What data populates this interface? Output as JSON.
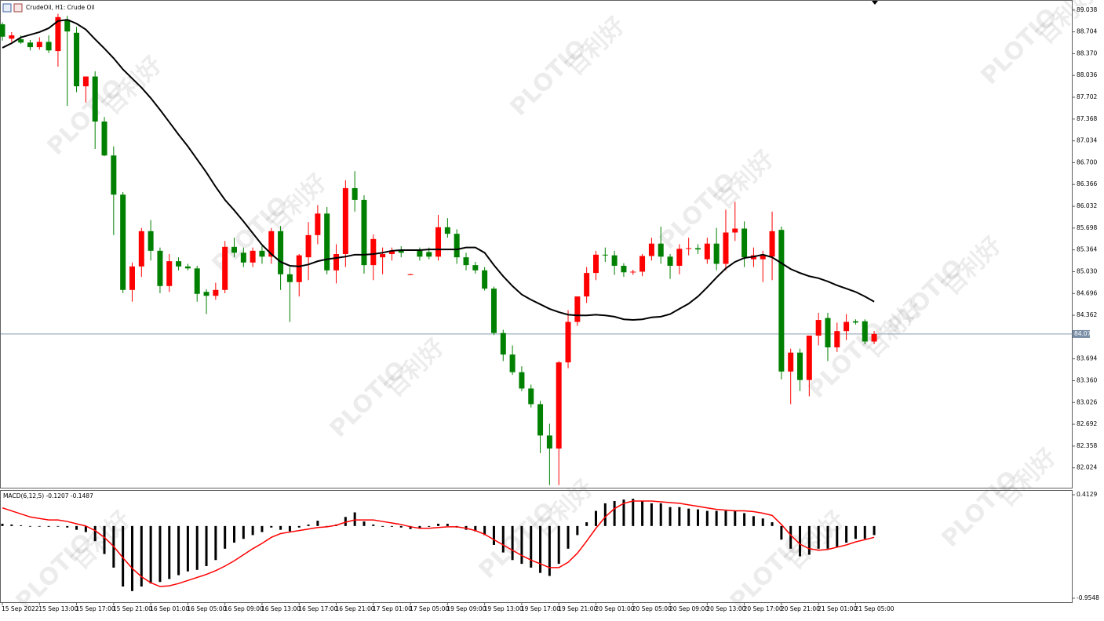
{
  "chart_data": [
    {
      "type": "candlestick",
      "title": "CrudeOil, H1:  Crude Oil",
      "categories": [
        "15 Sep 2022",
        null,
        null,
        null,
        "15 Sep 13:00",
        null,
        null,
        null,
        "15 Sep 17:00",
        null,
        null,
        null,
        "15 Sep 21:00",
        null,
        null,
        null,
        "16 Sep 01:00",
        null,
        null,
        null,
        "16 Sep 05:00",
        null,
        null,
        null,
        "16 Sep 09:00",
        null,
        null,
        null,
        "16 Sep 13:00",
        null,
        null,
        null,
        "16 Sep 17:00",
        null,
        null,
        null,
        "16 Sep 21:00",
        null,
        null,
        null,
        "17 Sep 01:00",
        null,
        null,
        null,
        "17 Sep 05:00",
        null,
        null,
        null,
        "19 Sep 09:00",
        null,
        null,
        null,
        "19 Sep 13:00",
        null,
        null,
        null,
        "19 Sep 17:00",
        null,
        null,
        null,
        "19 Sep 21:00",
        null,
        null,
        null,
        "20 Sep 01:00",
        null,
        null,
        null,
        "20 Sep 05:00",
        null,
        null,
        null,
        "20 Sep 09:00",
        null,
        null,
        null,
        "20 Sep 13:00",
        null,
        null,
        null,
        "20 Sep 17:00",
        null,
        null,
        null,
        "20 Sep 21:00",
        null,
        null,
        null,
        "21 Sep 01:00",
        null,
        null,
        null,
        "21 Sep 05:00",
        null,
        null
      ],
      "open": [
        88.82,
        88.6,
        88.59,
        88.54,
        88.47,
        88.55,
        88.41,
        88.89,
        88.69,
        87.87,
        88.02,
        87.33,
        86.81,
        86.21,
        84.75,
        85.11,
        85.65,
        85.35,
        84.81,
        85.19,
        85.11,
        85.08,
        84.72,
        84.66,
        84.75,
        85.41,
        85.32,
        85.17,
        85.35,
        85.26,
        85.65,
        84.99,
        84.87,
        85.25,
        85.59,
        85.92,
        85.05,
        85.3,
        86.31,
        86.13,
        85.13,
        85.25,
        85.3,
        85.35,
        84.99,
        85.35,
        85.33,
        85.26,
        85.71,
        85.61,
        85.25,
        85.13,
        85.05,
        84.77,
        84.09,
        83.76,
        83.49,
        83.24,
        83.0,
        82.52,
        82.32,
        83.64,
        84.26,
        84.65,
        85.01,
        85.29,
        85.28,
        85.12,
        85.02,
        85.03,
        85.27,
        85.46,
        85.26,
        85.12,
        85.38,
        85.39,
        85.22,
        85.46,
        85.15,
        85.63,
        85.69,
        85.22,
        85.22,
        85.26,
        85.67,
        83.5,
        83.79,
        83.37,
        84.05,
        84.32,
        83.87,
        84.12,
        84.27,
        84.27,
        83.96
      ],
      "high": [
        88.85,
        88.7,
        88.65,
        88.58,
        88.62,
        88.65,
        88.98,
        88.95,
        88.78,
        88.02,
        88.1,
        87.4,
        86.95,
        86.25,
        85.17,
        85.7,
        85.82,
        85.4,
        85.3,
        85.25,
        85.15,
        85.12,
        84.76,
        84.86,
        85.5,
        85.55,
        85.4,
        85.4,
        85.42,
        85.7,
        85.73,
        85.1,
        85.3,
        85.79,
        86.05,
        86.02,
        85.45,
        86.43,
        86.57,
        86.2,
        85.6,
        85.4,
        85.4,
        85.42,
        85.0,
        85.4,
        85.4,
        85.9,
        85.85,
        85.68,
        85.32,
        85.18,
        85.1,
        84.8,
        84.14,
        83.9,
        83.58,
        83.3,
        83.05,
        82.7,
        83.66,
        84.44,
        84.65,
        85.1,
        85.35,
        85.4,
        85.35,
        85.16,
        85.06,
        85.3,
        85.55,
        85.72,
        85.3,
        85.45,
        85.55,
        85.45,
        85.55,
        85.7,
        85.98,
        86.1,
        85.8,
        85.4,
        85.35,
        85.95,
        85.72,
        83.85,
        83.85,
        84.05,
        84.4,
        84.4,
        84.25,
        84.38,
        84.3,
        84.3,
        84.12
      ],
      "low": [
        88.57,
        88.55,
        88.52,
        88.42,
        88.43,
        88.38,
        88.17,
        87.57,
        87.78,
        87.62,
        86.91,
        86.8,
        85.59,
        84.7,
        84.57,
        84.95,
        85.2,
        84.7,
        84.72,
        85.05,
        85.05,
        84.57,
        84.38,
        84.6,
        84.7,
        85.25,
        85.1,
        85.1,
        85.15,
        85.15,
        84.75,
        84.26,
        84.65,
        84.9,
        85.45,
        84.99,
        84.85,
        85.1,
        85.95,
        85.0,
        84.9,
        84.99,
        85.2,
        85.25,
        84.98,
        85.2,
        85.22,
        85.2,
        85.55,
        85.15,
        85.05,
        85.0,
        84.74,
        84.06,
        83.66,
        83.45,
        83.2,
        82.95,
        82.25,
        81.76,
        81.76,
        83.55,
        84.2,
        84.55,
        84.9,
        85.18,
        84.98,
        84.95,
        84.98,
        84.96,
        85.2,
        85.15,
        84.92,
        84.99,
        85.28,
        85.3,
        85.15,
        85.05,
        85.05,
        85.5,
        85.1,
        85.1,
        84.87,
        84.9,
        83.38,
        83.0,
        83.2,
        83.12,
        83.9,
        83.66,
        83.8,
        83.98,
        84.22,
        83.92,
        83.92
      ],
      "close": [
        88.63,
        88.65,
        88.54,
        88.47,
        88.55,
        88.42,
        88.93,
        88.71,
        87.87,
        88.02,
        87.33,
        86.81,
        86.21,
        84.75,
        85.11,
        85.65,
        85.35,
        84.81,
        85.19,
        85.11,
        85.08,
        84.69,
        84.66,
        84.75,
        85.41,
        85.32,
        85.17,
        85.35,
        85.26,
        85.65,
        84.99,
        84.87,
        85.28,
        85.59,
        85.92,
        85.05,
        85.3,
        86.31,
        86.13,
        85.13,
        85.53,
        85.3,
        85.35,
        85.32,
        84.99,
        85.26,
        85.26,
        85.71,
        85.61,
        85.25,
        85.13,
        85.05,
        84.77,
        84.09,
        83.76,
        83.49,
        83.24,
        83.0,
        82.52,
        82.32,
        83.64,
        84.26,
        84.65,
        85.01,
        85.29,
        85.28,
        85.12,
        85.02,
        85.03,
        85.27,
        85.46,
        85.26,
        85.12,
        85.38,
        85.39,
        85.37,
        85.46,
        85.15,
        85.63,
        85.69,
        85.25,
        85.28,
        85.28,
        85.65,
        83.5,
        83.79,
        83.37,
        84.05,
        84.29,
        83.87,
        84.12,
        84.26,
        84.25,
        83.96,
        84.075
      ],
      "up_color": "#ff0000",
      "down_color": "#008000",
      "series": [
        {
          "color": "#000000",
          "values": [
            88.46,
            88.53,
            88.62,
            88.66,
            88.7,
            88.76,
            88.87,
            88.89,
            88.83,
            88.74,
            88.59,
            88.45,
            88.3,
            88.13,
            87.99,
            87.85,
            87.69,
            87.51,
            87.32,
            87.13,
            86.95,
            86.75,
            86.55,
            86.33,
            86.13,
            85.97,
            85.8,
            85.62,
            85.44,
            85.3,
            85.18,
            85.12,
            85.11,
            85.14,
            85.19,
            85.22,
            85.24,
            85.26,
            85.29,
            85.29,
            85.3,
            85.32,
            85.35,
            85.36,
            85.36,
            85.36,
            85.37,
            85.37,
            85.37,
            85.37,
            85.4,
            85.4,
            85.32,
            85.13,
            84.96,
            84.81,
            84.68,
            84.6,
            84.53,
            84.46,
            84.41,
            84.37,
            84.36,
            84.36,
            84.37,
            84.36,
            84.34,
            84.3,
            84.29,
            84.3,
            84.33,
            84.34,
            84.38,
            84.46,
            84.54,
            84.65,
            84.79,
            84.94,
            85.08,
            85.18,
            85.24,
            85.26,
            85.29,
            85.25,
            85.16,
            85.07,
            85.01,
            84.96,
            84.93,
            84.88,
            84.82,
            84.77,
            84.72,
            84.65,
            84.57
          ]
        }
      ],
      "last_price": 84.075,
      "last_price_color": "#7a8fa6",
      "ylim": [
        81.72,
        89.18
      ],
      "yticks": [
        89.038,
        88.704,
        {
          "value": 88.37,
          "label": "88.370"
        },
        88.036,
        87.702,
        87.368,
        87.034,
        {
          "value": 86.7,
          "label": "86.700"
        },
        86.366,
        86.032,
        85.698,
        85.364,
        {
          "value": 85.03,
          "label": "85.030"
        },
        84.696,
        84.362,
        83.694,
        {
          "value": 83.36,
          "label": "83.360"
        },
        83.026,
        82.692,
        82.358,
        82.024
      ]
    },
    {
      "type": "bar",
      "title": "MACD(6,12,5) -0.1207 -0.1487",
      "color": "#000000",
      "values": [
        0.03,
        0.02,
        0.01,
        0.0,
        0.0,
        -0.01,
        0.0,
        -0.02,
        -0.05,
        -0.08,
        -0.2,
        -0.37,
        -0.55,
        -0.8,
        -0.86,
        -0.8,
        -0.76,
        -0.74,
        -0.7,
        -0.65,
        -0.6,
        -0.58,
        -0.53,
        -0.45,
        -0.3,
        -0.22,
        -0.17,
        -0.12,
        -0.08,
        -0.02,
        -0.05,
        -0.07,
        -0.02,
        0.02,
        0.07,
        0.0,
        0.02,
        0.12,
        0.18,
        0.06,
        0.02,
        -0.01,
        -0.01,
        -0.02,
        -0.04,
        -0.03,
        -0.01,
        0.03,
        0.03,
        -0.02,
        -0.05,
        -0.07,
        -0.12,
        -0.25,
        -0.35,
        -0.45,
        -0.5,
        -0.55,
        -0.62,
        -0.66,
        -0.5,
        -0.3,
        -0.12,
        0.05,
        0.2,
        0.3,
        0.33,
        0.35,
        0.36,
        0.33,
        0.3,
        0.3,
        0.25,
        0.25,
        0.23,
        0.22,
        0.2,
        0.2,
        0.2,
        0.2,
        0.17,
        0.13,
        0.1,
        0.05,
        -0.18,
        -0.3,
        -0.4,
        -0.38,
        -0.3,
        -0.3,
        -0.28,
        -0.22,
        -0.17,
        -0.17,
        -0.12
      ],
      "series": [
        {
          "color": "#ff0000",
          "values": [
            0.24,
            0.2,
            0.16,
            0.12,
            0.1,
            0.08,
            0.08,
            0.06,
            0.03,
            0.0,
            -0.06,
            -0.15,
            -0.27,
            -0.42,
            -0.56,
            -0.67,
            -0.75,
            -0.8,
            -0.79,
            -0.76,
            -0.72,
            -0.68,
            -0.64,
            -0.59,
            -0.53,
            -0.46,
            -0.38,
            -0.3,
            -0.23,
            -0.15,
            -0.1,
            -0.08,
            -0.06,
            -0.04,
            -0.02,
            -0.01,
            0.01,
            0.05,
            0.08,
            0.08,
            0.08,
            0.06,
            0.04,
            0.02,
            -0.01,
            -0.03,
            -0.03,
            -0.02,
            -0.01,
            -0.01,
            -0.03,
            -0.06,
            -0.11,
            -0.18,
            -0.25,
            -0.32,
            -0.39,
            -0.45,
            -0.5,
            -0.55,
            -0.55,
            -0.48,
            -0.36,
            -0.2,
            -0.03,
            0.12,
            0.23,
            0.3,
            0.33,
            0.33,
            0.33,
            0.32,
            0.31,
            0.3,
            0.28,
            0.26,
            0.24,
            0.22,
            0.21,
            0.2,
            0.2,
            0.19,
            0.17,
            0.14,
            0.02,
            -0.12,
            -0.24,
            -0.3,
            -0.32,
            -0.31,
            -0.28,
            -0.25,
            -0.21,
            -0.18,
            -0.15
          ]
        }
      ],
      "ylim": [
        -1.007,
        0.465
      ],
      "yticks": [
        0.4129,
        -0.9548
      ]
    }
  ],
  "watermark": {
    "logo": "PLOTIO",
    "text": "百利好"
  }
}
